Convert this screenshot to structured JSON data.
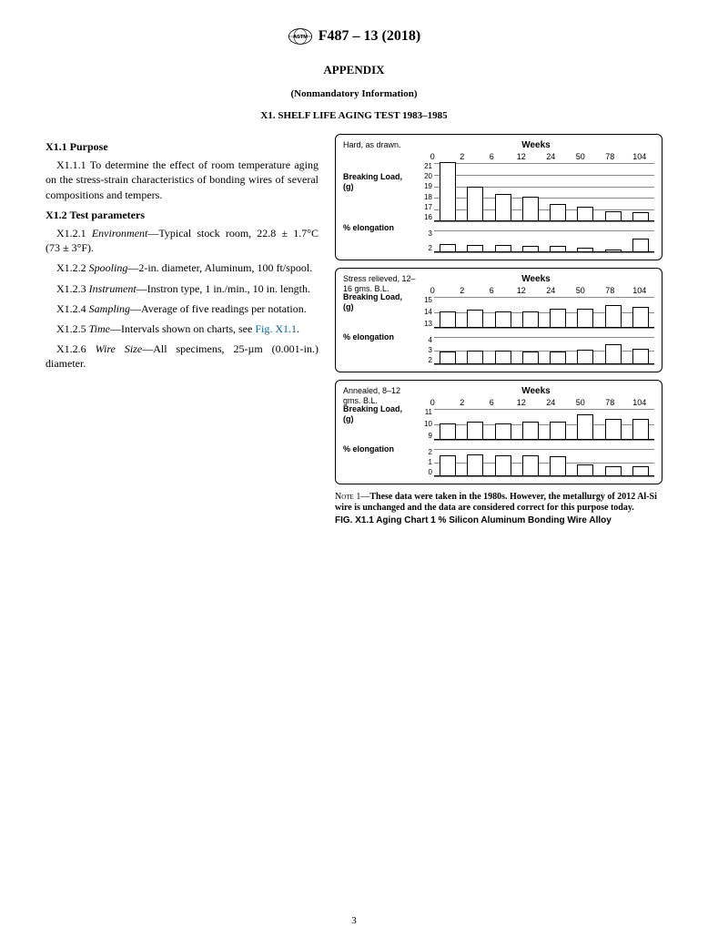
{
  "header": {
    "designation": "F487 – 13 (2018)",
    "appendix": "APPENDIX",
    "subtitle": "(Nonmandatory Information)",
    "section": "X1.   SHELF LIFE AGING TEST 1983–1985"
  },
  "purpose": {
    "heading": "X1.1  Purpose",
    "text": "X1.1.1 To determine the effect of room temperature aging on the stress-strain characteristics of bonding wires of several compositions and tempers."
  },
  "params": {
    "heading": "X1.2  Test parameters",
    "p1a": "X1.2.1 ",
    "p1b": "Environment",
    "p1c": "—Typical stock room, 22.8 ± 1.7°C (73 ± 3°F).",
    "p2a": "X1.2.2 ",
    "p2b": "Spooling",
    "p2c": "—2-in. diameter, Aluminum, 100 ft/spool.",
    "p3a": "X1.2.3 ",
    "p3b": "Instrument",
    "p3c": "—Instron type, 1 in./min., 10 in. length.",
    "p4a": "X1.2.4 ",
    "p4b": "Sampling",
    "p4c": "—Average of five readings per notation.",
    "p5a": "X1.2.5 ",
    "p5b": "Time",
    "p5c": "—Intervals shown on charts, see ",
    "p5ref": "Fig. X1.1",
    "p5d": ".",
    "p6a": "X1.2.6 ",
    "p6b": "Wire Size",
    "p6c": "—All specimens, 25-µm (0.001-in.) diameter."
  },
  "charts": {
    "xticks": [
      "0",
      "2",
      "6",
      "12",
      "24",
      "50",
      "78",
      "104"
    ],
    "weeks_label": "Weeks",
    "breaking_label": "Breaking Load, (g)",
    "elong_label": "% elongation",
    "panel1": {
      "title": "Hard, as drawn.",
      "bl_ylim": [
        16,
        21
      ],
      "bl_yticks": [
        "21",
        "20",
        "19",
        "18",
        "17",
        "16"
      ],
      "bl_values": [
        21.0,
        18.9,
        18.3,
        18.0,
        17.4,
        17.2,
        16.8,
        16.7
      ],
      "el_ylim": [
        2,
        3
      ],
      "el_yticks": [
        "3",
        "2"
      ],
      "el_values": [
        2.35,
        2.3,
        2.3,
        2.25,
        2.25,
        2.15,
        2.1,
        2.6
      ],
      "bl_height": 64,
      "el_height": 24
    },
    "panel2": {
      "title": "Stress relieved, 12–16 gms. B.L.",
      "bl_ylim": [
        13,
        15
      ],
      "bl_yticks": [
        "15",
        "14",
        "13"
      ],
      "bl_values": [
        14.0,
        14.1,
        14.0,
        14.0,
        14.2,
        14.2,
        14.4,
        14.3
      ],
      "el_ylim": [
        2,
        4
      ],
      "el_yticks": [
        "4",
        "3",
        "2"
      ],
      "el_values": [
        2.9,
        2.95,
        2.95,
        2.9,
        2.9,
        3.0,
        3.4,
        3.1
      ],
      "bl_height": 34,
      "el_height": 30
    },
    "panel3": {
      "title": "Annealed, 8–12 gms. B.L.",
      "bl_ylim": [
        9,
        11
      ],
      "bl_yticks": [
        "11",
        "10",
        "9"
      ],
      "bl_values": [
        10.0,
        10.1,
        10.0,
        10.1,
        10.1,
        10.6,
        10.3,
        10.3
      ],
      "el_ylim": [
        0,
        2
      ],
      "el_yticks": [
        "2",
        "1",
        "0"
      ],
      "el_values": [
        1.5,
        1.55,
        1.5,
        1.5,
        1.4,
        0.8,
        0.7,
        0.7
      ],
      "bl_height": 34,
      "el_height": 30
    }
  },
  "note": {
    "label": "Note 1—",
    "text": "These data were taken in the 1980s. However, the metallurgy of 2012 Al-Si wire is unchanged and the data are considered correct for this purpose today."
  },
  "caption": "FIG. X1.1  Aging Chart 1 % Silicon Aluminum Bonding Wire Alloy",
  "page": "3",
  "style": {
    "text_color": "#000000",
    "ref_color": "#0066aa",
    "bg_color": "#ffffff",
    "grid_color": "#888888"
  }
}
